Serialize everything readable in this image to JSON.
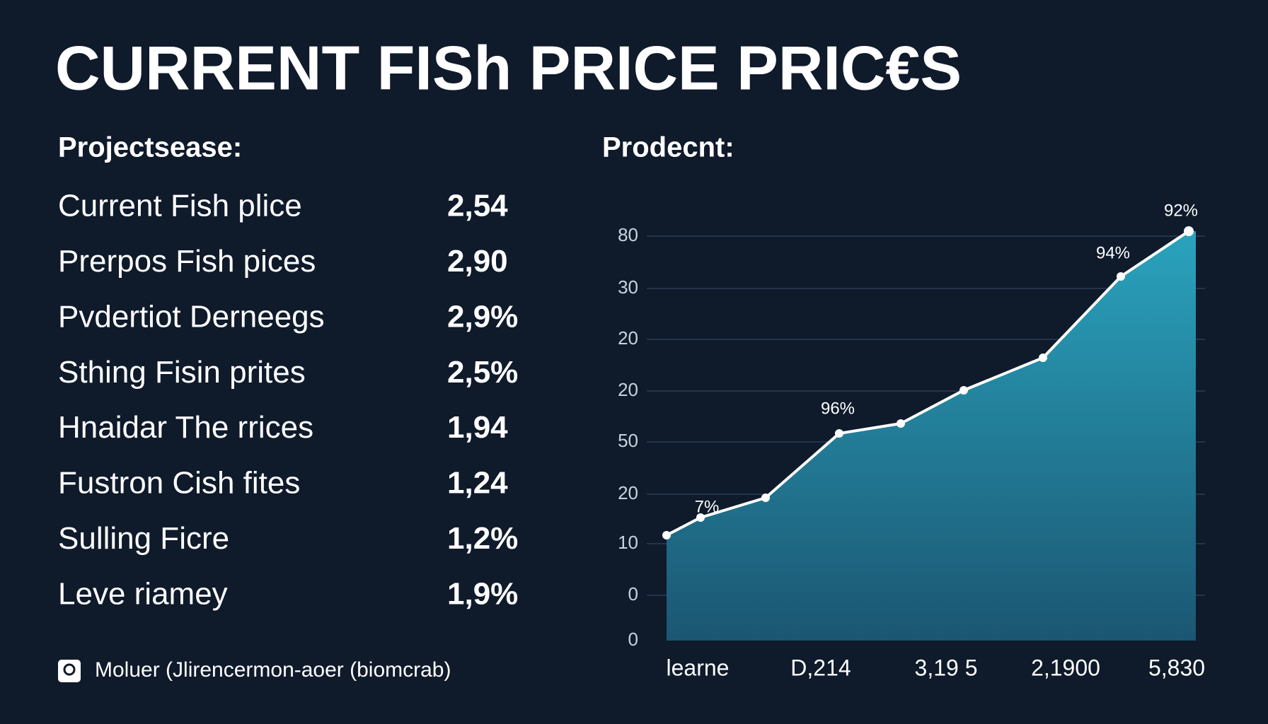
{
  "header": {
    "title": "CURRENT FISh PRICE PRIC€S"
  },
  "list": {
    "heading": "Projectsease:",
    "rows": [
      {
        "label": "Current Fish plice",
        "value": "2,54"
      },
      {
        "label": "Prerpos Fish pices",
        "value": "2,90"
      },
      {
        "label": "Pvdertiot Derneegs",
        "value": "2,9%"
      },
      {
        "label": "Sthing Fisin prites",
        "value": "2,5%"
      },
      {
        "label": "Hnaidar The rrices",
        "value": "1,94"
      },
      {
        "label": "Fustron Cish fites",
        "value": "1,24"
      },
      {
        "label": "Sulling Ficre",
        "value": "1,2%"
      },
      {
        "label": "Leve riamey",
        "value": "1,9%"
      }
    ]
  },
  "footer": {
    "note": "Moluer (Jlirencermon-aoer (biomcrab)"
  },
  "graph": {
    "heading": "Prodecnt:",
    "y_labels": [
      "80",
      "30",
      "20",
      "20",
      "50",
      "20",
      "10",
      "0",
      "0"
    ],
    "x_labels": [
      "learne",
      "D,214",
      "3,19 5",
      "2,1900",
      "5,830"
    ],
    "point_labels": [
      "92%",
      "94%",
      "96%",
      "7%"
    ]
  }
}
